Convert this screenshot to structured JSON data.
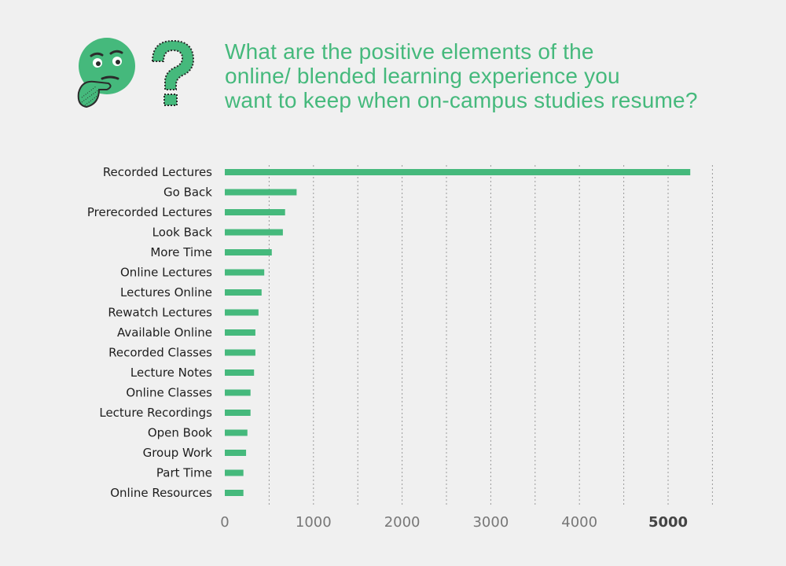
{
  "title_lines": [
    "What are the positive elements of the",
    "online/ blended learning experience you",
    "want to keep when on-campus studies resume?"
  ],
  "icons": [
    "thinking-face-icon",
    "question-mark-icon"
  ],
  "colors": {
    "accent": "#45b97c",
    "background": "#f0f0f0",
    "text": "#1e1e1e",
    "tick": "#777777"
  },
  "chart_data": {
    "type": "bar",
    "orientation": "horizontal",
    "categories": [
      "Recorded Lectures",
      "Go Back",
      "Prerecorded Lectures",
      "Look Back",
      "More Time",
      "Online Lectures",
      "Lectures Online",
      "Rewatch Lectures",
      "Available Online",
      "Recorded Classes",
      "Lecture Notes",
      "Online Classes",
      "Lecture Recordings",
      "Open Book",
      "Group Work",
      "Part Time",
      "Online Resources"
    ],
    "values": [
      5250,
      810,
      680,
      655,
      530,
      445,
      415,
      380,
      345,
      345,
      330,
      290,
      290,
      255,
      240,
      210,
      210
    ],
    "xlim": [
      0,
      5500
    ],
    "xticks": [
      0,
      1000,
      2000,
      3000,
      4000,
      5000
    ],
    "gridlines": [
      500,
      1000,
      1500,
      2000,
      2500,
      3000,
      3500,
      4000,
      4500,
      5000,
      5500
    ],
    "grid": "vertical dotted",
    "bold_tick": 5000
  }
}
